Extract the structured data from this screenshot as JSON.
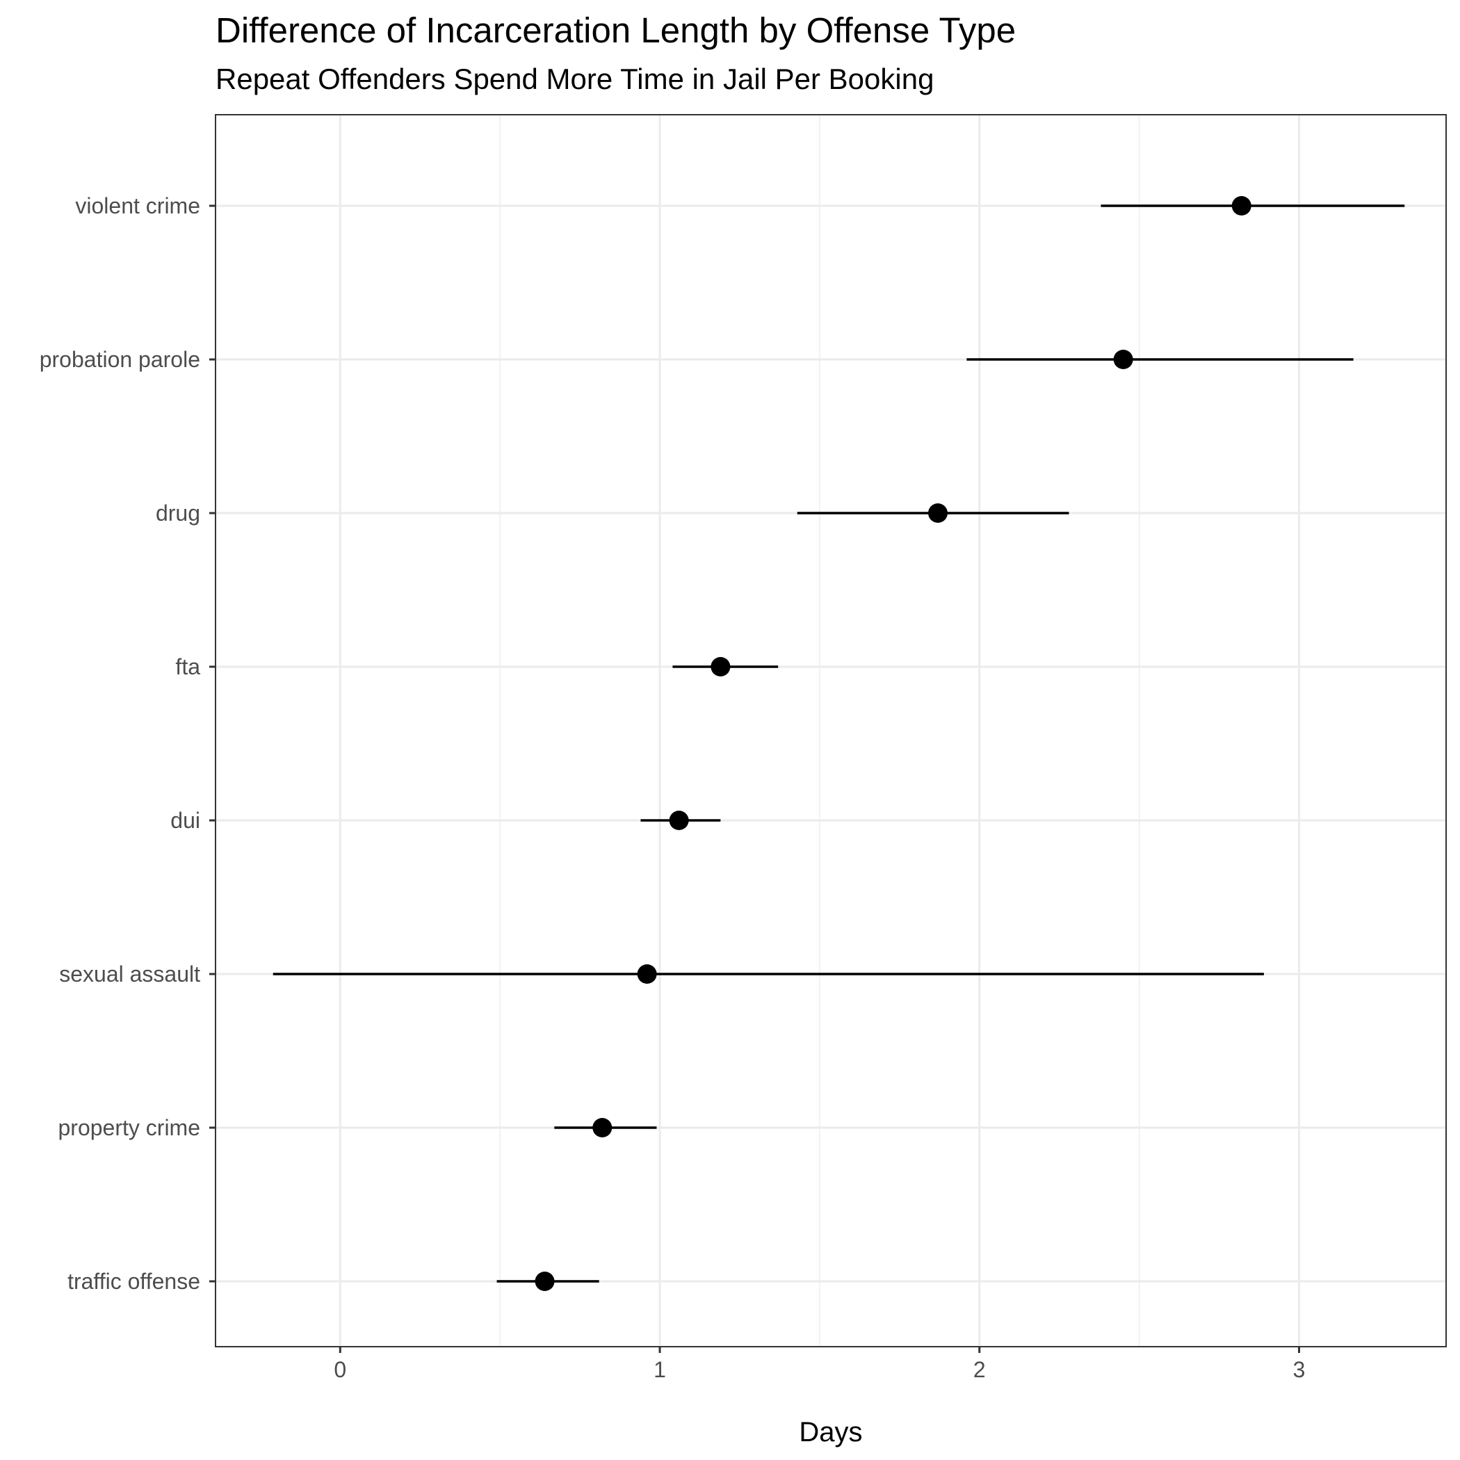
{
  "chart_data": {
    "type": "scatter",
    "subtype": "point-range",
    "title": "Difference of Incarceration Length by Offense Type",
    "subtitle": "Repeat Offenders Spend More Time in Jail Per Booking",
    "xlabel": "Days",
    "ylabel": "",
    "xlim": [
      -0.39,
      3.46
    ],
    "x_ticks": [
      0,
      1,
      2,
      3
    ],
    "x_tick_labels": [
      "0",
      "1",
      "2",
      "3"
    ],
    "grid": true,
    "legend": "none",
    "colors": {
      "point": "#000000",
      "line": "#000000",
      "grid_major": "#ebebeb",
      "grid_minor": "#f2f2f2",
      "panel_border": "#333333",
      "tick_label": "#4d4d4d"
    },
    "categories": [
      "violent crime",
      "probation parole",
      "drug",
      "fta",
      "dui",
      "sexual assault",
      "property crime",
      "traffic offense"
    ],
    "values": [
      2.82,
      2.45,
      1.87,
      1.19,
      1.06,
      0.96,
      0.82,
      0.64
    ],
    "lower": [
      2.38,
      1.96,
      1.43,
      1.04,
      0.94,
      -0.21,
      0.67,
      0.49
    ],
    "upper": [
      3.33,
      3.17,
      2.28,
      1.37,
      1.19,
      2.89,
      0.99,
      0.81
    ]
  }
}
